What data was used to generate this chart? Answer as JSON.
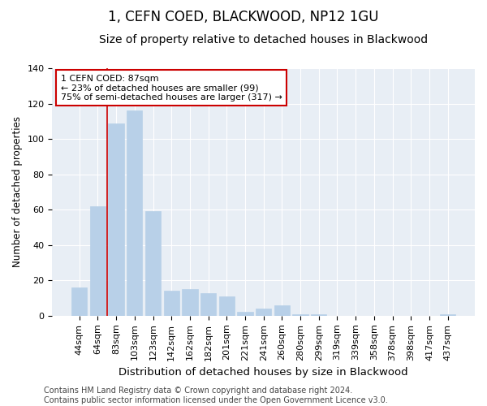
{
  "title": "1, CEFN COED, BLACKWOOD, NP12 1GU",
  "subtitle": "Size of property relative to detached houses in Blackwood",
  "xlabel": "Distribution of detached houses by size in Blackwood",
  "ylabel": "Number of detached properties",
  "categories": [
    "44sqm",
    "64sqm",
    "83sqm",
    "103sqm",
    "123sqm",
    "142sqm",
    "162sqm",
    "182sqm",
    "201sqm",
    "221sqm",
    "241sqm",
    "260sqm",
    "280sqm",
    "299sqm",
    "319sqm",
    "339sqm",
    "358sqm",
    "378sqm",
    "398sqm",
    "417sqm",
    "437sqm"
  ],
  "values": [
    16,
    62,
    109,
    116,
    59,
    14,
    15,
    13,
    11,
    2,
    4,
    6,
    1,
    1,
    0,
    0,
    0,
    0,
    0,
    0,
    1
  ],
  "bar_color": "#b8d0e8",
  "bar_edgecolor": "#b8d0e8",
  "fig_background_color": "#ffffff",
  "ax_background_color": "#e8eef5",
  "grid_color": "#ffffff",
  "redline_index": 2,
  "annotation_text": "1 CEFN COED: 87sqm\n← 23% of detached houses are smaller (99)\n75% of semi-detached houses are larger (317) →",
  "annotation_box_facecolor": "#ffffff",
  "annotation_box_edgecolor": "#cc0000",
  "ylim": [
    0,
    140
  ],
  "yticks": [
    0,
    20,
    40,
    60,
    80,
    100,
    120,
    140
  ],
  "title_fontsize": 12,
  "subtitle_fontsize": 10,
  "xlabel_fontsize": 9.5,
  "ylabel_fontsize": 8.5,
  "annotation_fontsize": 8,
  "tick_fontsize": 8,
  "footer": "Contains HM Land Registry data © Crown copyright and database right 2024.\nContains public sector information licensed under the Open Government Licence v3.0.",
  "footer_fontsize": 7
}
